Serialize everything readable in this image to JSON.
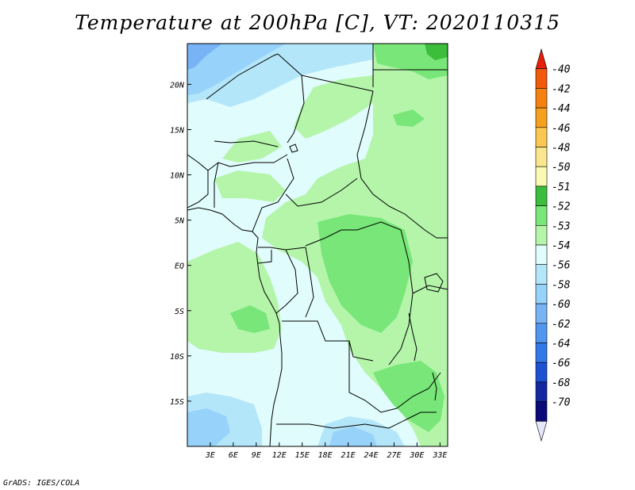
{
  "title": "Temperature at 200hPa [C], VT: 2020110315",
  "credit": "GrADS: IGES/COLA",
  "map": {
    "lon_range": [
      0,
      34
    ],
    "lat_range": [
      -20,
      24.5
    ],
    "lon_ticks": [
      {
        "value": 3,
        "label": "3E"
      },
      {
        "value": 6,
        "label": "6E"
      },
      {
        "value": 9,
        "label": "9E"
      },
      {
        "value": 12,
        "label": "12E"
      },
      {
        "value": 15,
        "label": "15E"
      },
      {
        "value": 18,
        "label": "18E"
      },
      {
        "value": 21,
        "label": "21E"
      },
      {
        "value": 24,
        "label": "24E"
      },
      {
        "value": 27,
        "label": "27E"
      },
      {
        "value": 30,
        "label": "30E"
      },
      {
        "value": 33,
        "label": "33E"
      }
    ],
    "lat_ticks": [
      {
        "value": 20,
        "label": "20N"
      },
      {
        "value": 15,
        "label": "15N"
      },
      {
        "value": 10,
        "label": "10N"
      },
      {
        "value": 5,
        "label": "5N"
      },
      {
        "value": 0,
        "label": "EQ"
      },
      {
        "value": -5,
        "label": "5S"
      },
      {
        "value": -10,
        "label": "10S"
      },
      {
        "value": -15,
        "label": "15S"
      }
    ],
    "background_color": "#e0fcfc"
  },
  "colorbar": {
    "labels": [
      "-40",
      "-42",
      "-44",
      "-46",
      "-48",
      "-50",
      "-51",
      "-52",
      "-53",
      "-54",
      "-56",
      "-58",
      "-60",
      "-62",
      "-64",
      "-66",
      "-68",
      "-70"
    ],
    "colors": [
      "#e61e0a",
      "#f05a0a",
      "#f5820f",
      "#f5a01e",
      "#fac850",
      "#fae68c",
      "#fafab4",
      "#3cbe3c",
      "#78e678",
      "#b4f5aa",
      "#e0fcfc",
      "#b4e6fa",
      "#96d2fa",
      "#78b4f5",
      "#5096f0",
      "#3278e6",
      "#1e50d2",
      "#1428a0",
      "#0a0a78",
      "#e6e6fa"
    ]
  }
}
